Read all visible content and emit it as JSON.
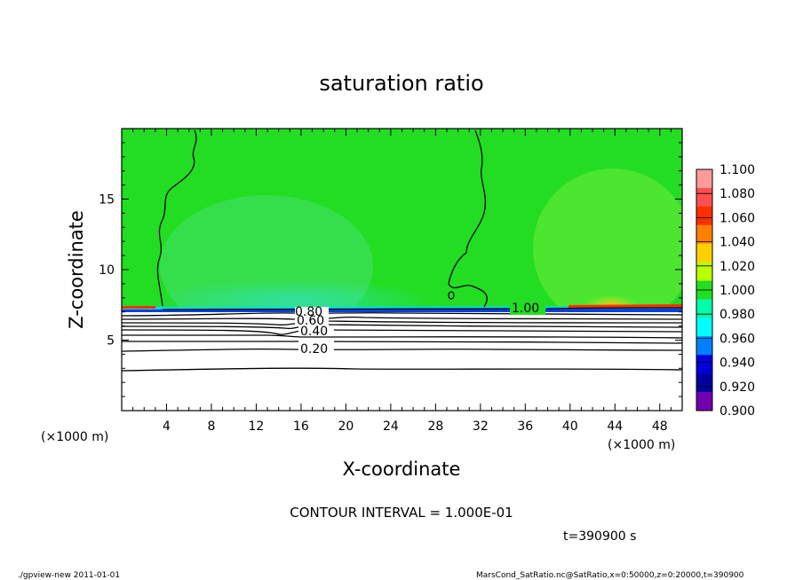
{
  "chart_data": {
    "type": "heatmap",
    "title": "saturation ratio",
    "xlabel": "X-coordinate",
    "ylabel": "Z-coordinate",
    "x_unit_left": "(×1000 m)",
    "x_unit_right": "(×1000 m)",
    "xlim": [
      0,
      50
    ],
    "ylim": [
      0,
      20
    ],
    "x_ticks": [
      4,
      8,
      12,
      16,
      20,
      24,
      28,
      32,
      36,
      40,
      44,
      48
    ],
    "y_ticks": [
      5,
      10,
      15
    ],
    "colorbar": {
      "levels": [
        "1.100",
        "1.080",
        "1.060",
        "1.040",
        "1.020",
        "1.000",
        "0.980",
        "0.960",
        "0.940",
        "0.920",
        "0.900"
      ],
      "colors": [
        "#ff9a9a",
        "#ff5050",
        "#ff3000",
        "#ff8000",
        "#ffd000",
        "#b8ff00",
        "#22dd22",
        "#00ffaa",
        "#00ffff",
        "#0080ff",
        "#0000dd",
        "#0000a0",
        "#7000b0"
      ]
    },
    "contour_interval_text": "CONTOUR INTERVAL = 1.000E-01",
    "contour_labels": [
      {
        "text": "1.00",
        "x": 36.5,
        "z": 7.2
      },
      {
        "text": "0.80",
        "x": 17.5,
        "z": 7.0
      },
      {
        "text": "0.60",
        "x": 17.8,
        "z": 6.5
      },
      {
        "text": "0.40",
        "x": 17.2,
        "z": 5.6
      },
      {
        "text": "0.20",
        "x": 17.2,
        "z": 4.3
      }
    ],
    "time_text": "t=390900 s",
    "footer_left": "./gpview-new   2011-01-01",
    "footer_right": "MarsCond_SatRatio.nc@SatRatio,x=0:50000,z=0:20000,t=390900"
  }
}
